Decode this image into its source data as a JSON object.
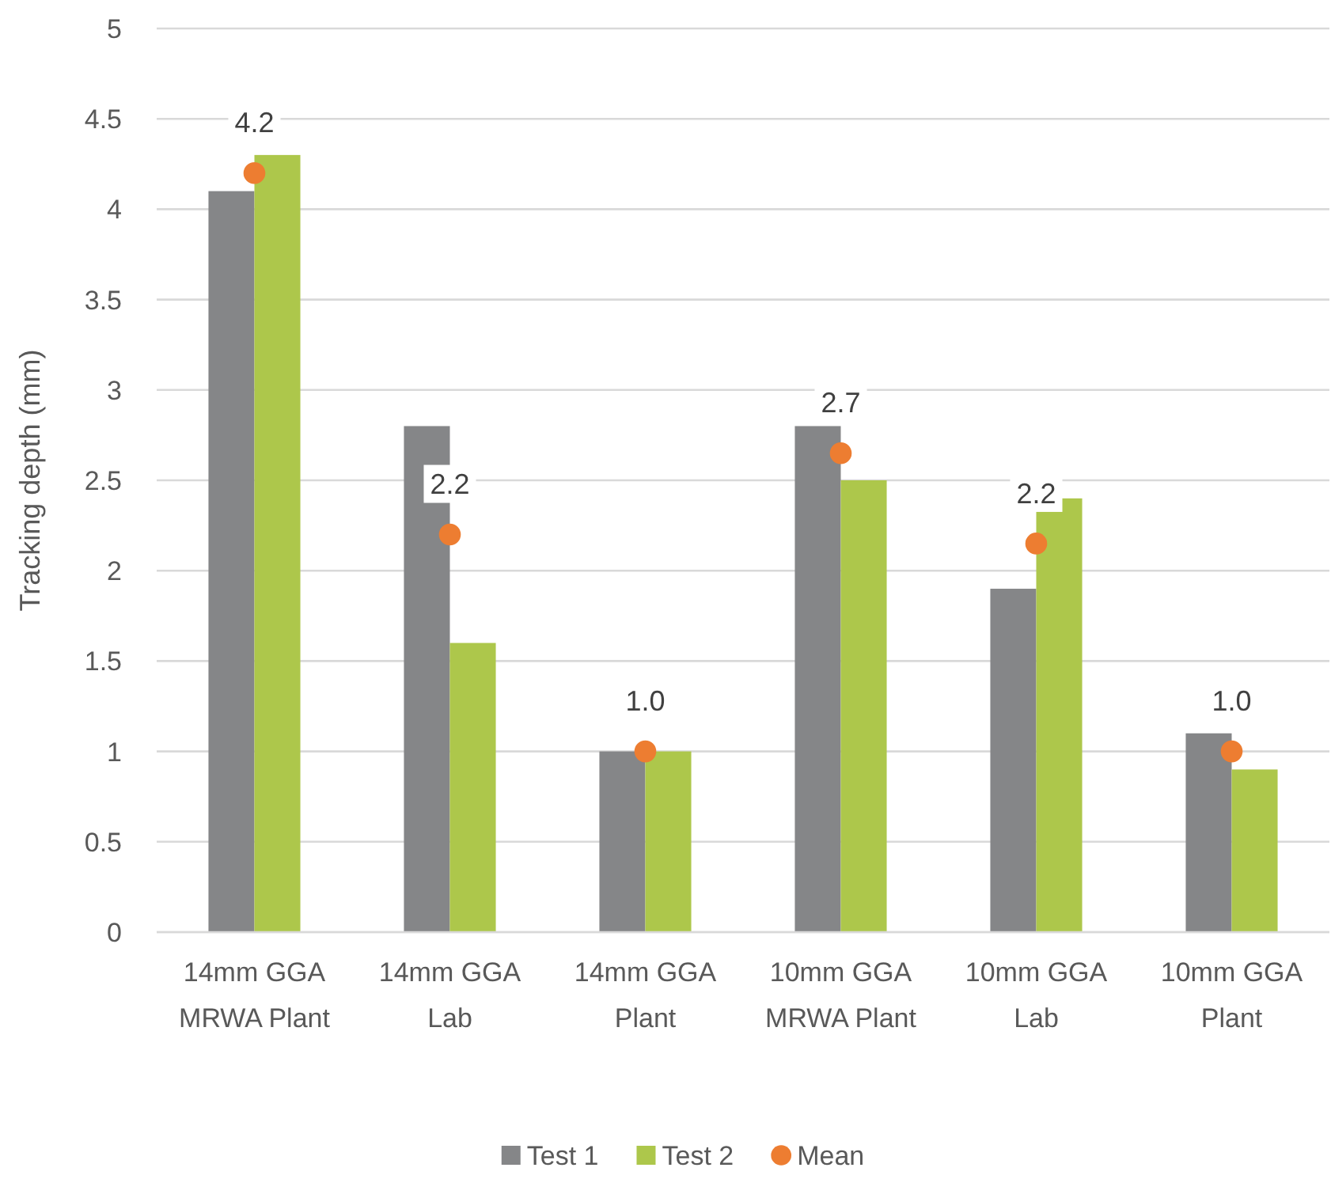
{
  "chart_data": {
    "type": "bar",
    "ylabel": "Tracking depth (mm)",
    "categories": [
      "14mm GGA MRWA Plant",
      "14mm GGA Lab",
      "14mm GGA Plant",
      "10mm GGA MRWA Plant",
      "10mm GGA Lab",
      "10mm GGA Plant"
    ],
    "series": [
      {
        "name": "Test 1",
        "color": "#858688",
        "values": [
          4.1,
          2.8,
          1.0,
          2.8,
          1.9,
          1.1
        ]
      },
      {
        "name": "Test 2",
        "color": "#adc74b",
        "values": [
          4.3,
          1.6,
          1.0,
          2.5,
          2.4,
          0.9
        ]
      },
      {
        "name": "Mean",
        "type": "scatter",
        "color": "#ed7d31",
        "marker": "circle",
        "x": [
          "14mm GGA MRWA Plant",
          "14mm GGA Lab",
          "14mm GGA Plant",
          "10mm GGA MRWA Plant",
          "10mm GGA Lab",
          "10mm GGA Plant"
        ],
        "values": [
          4.2,
          2.2,
          1.0,
          2.65,
          2.15,
          1.0
        ],
        "value_labels": [
          "4.2",
          "2.2",
          "1.0",
          "2.7",
          "2.2",
          "1.0"
        ]
      }
    ],
    "ylim": [
      0,
      5
    ],
    "yticks": [
      0,
      0.5,
      1,
      1.5,
      2,
      2.5,
      3,
      3.5,
      4,
      4.5,
      5
    ],
    "grid": "y",
    "legend": "bottom"
  }
}
